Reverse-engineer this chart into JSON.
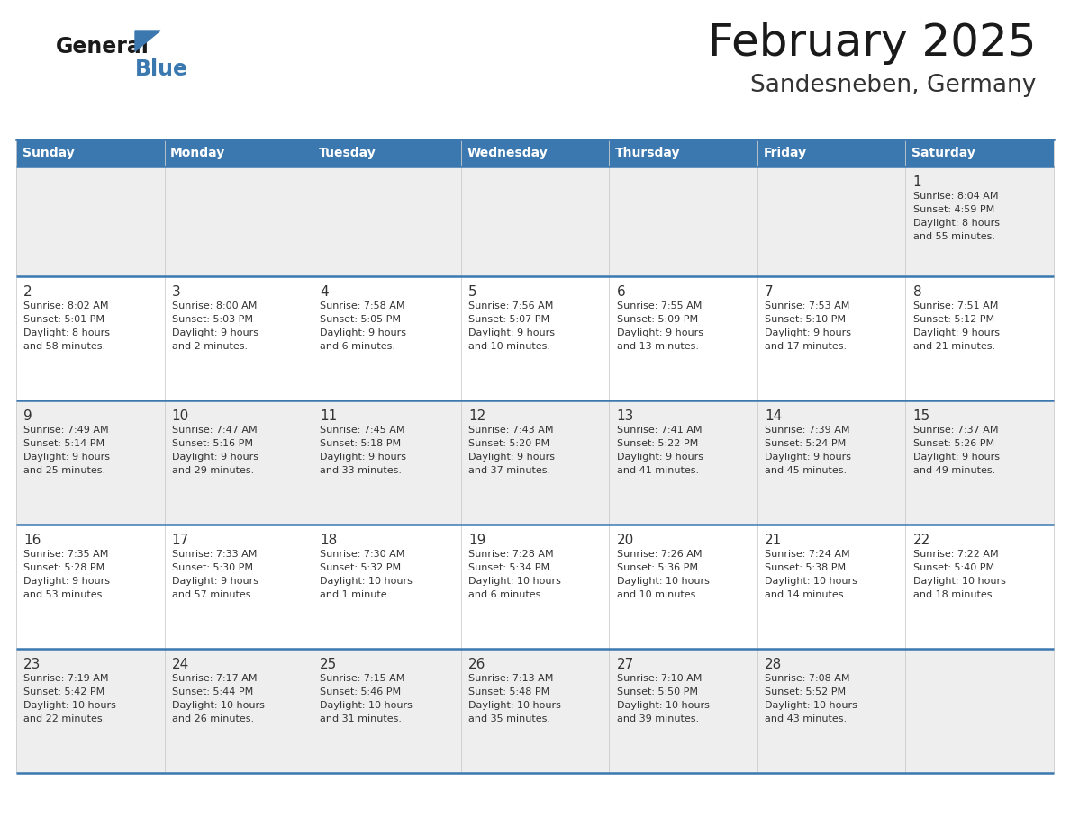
{
  "title": "February 2025",
  "subtitle": "Sandesneben, Germany",
  "header_color": "#3b78b0",
  "header_text_color": "#ffffff",
  "cell_bg_gray": "#eeeeee",
  "cell_bg_white": "#ffffff",
  "day_names": [
    "Sunday",
    "Monday",
    "Tuesday",
    "Wednesday",
    "Thursday",
    "Friday",
    "Saturday"
  ],
  "title_color": "#1a1a1a",
  "subtitle_color": "#333333",
  "line_color": "#3b78b0",
  "text_color": "#333333",
  "days": [
    {
      "day": 1,
      "col": 6,
      "row": 0,
      "sunrise": "8:04 AM",
      "sunset": "4:59 PM",
      "daylight_a": "8 hours",
      "daylight_b": "and 55 minutes."
    },
    {
      "day": 2,
      "col": 0,
      "row": 1,
      "sunrise": "8:02 AM",
      "sunset": "5:01 PM",
      "daylight_a": "8 hours",
      "daylight_b": "and 58 minutes."
    },
    {
      "day": 3,
      "col": 1,
      "row": 1,
      "sunrise": "8:00 AM",
      "sunset": "5:03 PM",
      "daylight_a": "9 hours",
      "daylight_b": "and 2 minutes."
    },
    {
      "day": 4,
      "col": 2,
      "row": 1,
      "sunrise": "7:58 AM",
      "sunset": "5:05 PM",
      "daylight_a": "9 hours",
      "daylight_b": "and 6 minutes."
    },
    {
      "day": 5,
      "col": 3,
      "row": 1,
      "sunrise": "7:56 AM",
      "sunset": "5:07 PM",
      "daylight_a": "9 hours",
      "daylight_b": "and 10 minutes."
    },
    {
      "day": 6,
      "col": 4,
      "row": 1,
      "sunrise": "7:55 AM",
      "sunset": "5:09 PM",
      "daylight_a": "9 hours",
      "daylight_b": "and 13 minutes."
    },
    {
      "day": 7,
      "col": 5,
      "row": 1,
      "sunrise": "7:53 AM",
      "sunset": "5:10 PM",
      "daylight_a": "9 hours",
      "daylight_b": "and 17 minutes."
    },
    {
      "day": 8,
      "col": 6,
      "row": 1,
      "sunrise": "7:51 AM",
      "sunset": "5:12 PM",
      "daylight_a": "9 hours",
      "daylight_b": "and 21 minutes."
    },
    {
      "day": 9,
      "col": 0,
      "row": 2,
      "sunrise": "7:49 AM",
      "sunset": "5:14 PM",
      "daylight_a": "9 hours",
      "daylight_b": "and 25 minutes."
    },
    {
      "day": 10,
      "col": 1,
      "row": 2,
      "sunrise": "7:47 AM",
      "sunset": "5:16 PM",
      "daylight_a": "9 hours",
      "daylight_b": "and 29 minutes."
    },
    {
      "day": 11,
      "col": 2,
      "row": 2,
      "sunrise": "7:45 AM",
      "sunset": "5:18 PM",
      "daylight_a": "9 hours",
      "daylight_b": "and 33 minutes."
    },
    {
      "day": 12,
      "col": 3,
      "row": 2,
      "sunrise": "7:43 AM",
      "sunset": "5:20 PM",
      "daylight_a": "9 hours",
      "daylight_b": "and 37 minutes."
    },
    {
      "day": 13,
      "col": 4,
      "row": 2,
      "sunrise": "7:41 AM",
      "sunset": "5:22 PM",
      "daylight_a": "9 hours",
      "daylight_b": "and 41 minutes."
    },
    {
      "day": 14,
      "col": 5,
      "row": 2,
      "sunrise": "7:39 AM",
      "sunset": "5:24 PM",
      "daylight_a": "9 hours",
      "daylight_b": "and 45 minutes."
    },
    {
      "day": 15,
      "col": 6,
      "row": 2,
      "sunrise": "7:37 AM",
      "sunset": "5:26 PM",
      "daylight_a": "9 hours",
      "daylight_b": "and 49 minutes."
    },
    {
      "day": 16,
      "col": 0,
      "row": 3,
      "sunrise": "7:35 AM",
      "sunset": "5:28 PM",
      "daylight_a": "9 hours",
      "daylight_b": "and 53 minutes."
    },
    {
      "day": 17,
      "col": 1,
      "row": 3,
      "sunrise": "7:33 AM",
      "sunset": "5:30 PM",
      "daylight_a": "9 hours",
      "daylight_b": "and 57 minutes."
    },
    {
      "day": 18,
      "col": 2,
      "row": 3,
      "sunrise": "7:30 AM",
      "sunset": "5:32 PM",
      "daylight_a": "10 hours",
      "daylight_b": "and 1 minute."
    },
    {
      "day": 19,
      "col": 3,
      "row": 3,
      "sunrise": "7:28 AM",
      "sunset": "5:34 PM",
      "daylight_a": "10 hours",
      "daylight_b": "and 6 minutes."
    },
    {
      "day": 20,
      "col": 4,
      "row": 3,
      "sunrise": "7:26 AM",
      "sunset": "5:36 PM",
      "daylight_a": "10 hours",
      "daylight_b": "and 10 minutes."
    },
    {
      "day": 21,
      "col": 5,
      "row": 3,
      "sunrise": "7:24 AM",
      "sunset": "5:38 PM",
      "daylight_a": "10 hours",
      "daylight_b": "and 14 minutes."
    },
    {
      "day": 22,
      "col": 6,
      "row": 3,
      "sunrise": "7:22 AM",
      "sunset": "5:40 PM",
      "daylight_a": "10 hours",
      "daylight_b": "and 18 minutes."
    },
    {
      "day": 23,
      "col": 0,
      "row": 4,
      "sunrise": "7:19 AM",
      "sunset": "5:42 PM",
      "daylight_a": "10 hours",
      "daylight_b": "and 22 minutes."
    },
    {
      "day": 24,
      "col": 1,
      "row": 4,
      "sunrise": "7:17 AM",
      "sunset": "5:44 PM",
      "daylight_a": "10 hours",
      "daylight_b": "and 26 minutes."
    },
    {
      "day": 25,
      "col": 2,
      "row": 4,
      "sunrise": "7:15 AM",
      "sunset": "5:46 PM",
      "daylight_a": "10 hours",
      "daylight_b": "and 31 minutes."
    },
    {
      "day": 26,
      "col": 3,
      "row": 4,
      "sunrise": "7:13 AM",
      "sunset": "5:48 PM",
      "daylight_a": "10 hours",
      "daylight_b": "and 35 minutes."
    },
    {
      "day": 27,
      "col": 4,
      "row": 4,
      "sunrise": "7:10 AM",
      "sunset": "5:50 PM",
      "daylight_a": "10 hours",
      "daylight_b": "and 39 minutes."
    },
    {
      "day": 28,
      "col": 5,
      "row": 4,
      "sunrise": "7:08 AM",
      "sunset": "5:52 PM",
      "daylight_a": "10 hours",
      "daylight_b": "and 43 minutes."
    }
  ]
}
